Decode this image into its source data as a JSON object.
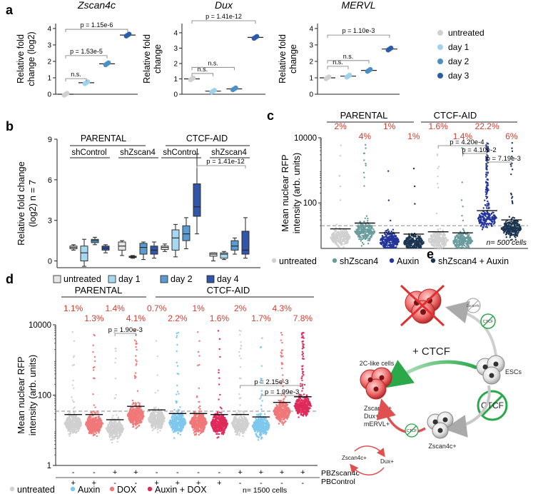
{
  "panels": {
    "a": "a",
    "b": "b",
    "c": "c",
    "d": "d",
    "e": "e"
  },
  "colors": {
    "untreated": "#d0d0d0",
    "day1": "#9fd3ec",
    "day2": "#4a8fc8",
    "day3": "#2c5ba8",
    "boxUntreated": "#e6e6e6",
    "boxDay1": "#a6d9f1",
    "boxDay2": "#5b9bd0",
    "boxDay4": "#3355a8",
    "shZscan4": "#6a9c9e",
    "auxin": "#23349a",
    "shAuxin": "#1c3551",
    "auxinLight": "#7ec8ee",
    "dox": "#f07878",
    "auxinDox": "#df2a5c",
    "pct": "#d63a2e",
    "green": "#2aa84a",
    "redX": "#e03030"
  },
  "chart_data": [
    {
      "type": "scatter",
      "panel": "a",
      "title": "Zscan4c",
      "ylabel": "Relative fold change (log2)",
      "ylim": [
        0,
        4.3
      ],
      "yticks": [
        "0",
        "1",
        "2",
        "3",
        "4"
      ],
      "series": [
        {
          "name": "untreated",
          "values": [
            0
          ]
        },
        {
          "name": "day 1",
          "values": [
            0.7
          ]
        },
        {
          "name": "day 2",
          "values": [
            1.85
          ]
        },
        {
          "name": "day 3",
          "values": [
            3.6
          ]
        }
      ],
      "annotations": [
        "n.s.",
        "p = 1.53e-5",
        "p = 1.15e-6"
      ]
    },
    {
      "type": "scatter",
      "panel": "a",
      "title": "Dux",
      "ylabel": "Relative fold change",
      "ylim": [
        0,
        4.6
      ],
      "yticks": [
        "0",
        "1",
        "2",
        "3",
        "4"
      ],
      "series": [
        {
          "name": "untreated",
          "values": [
            1.0
          ]
        },
        {
          "name": "day 1",
          "values": [
            0.2
          ]
        },
        {
          "name": "day 2",
          "values": [
            0.35
          ]
        },
        {
          "name": "day 3",
          "values": [
            3.7
          ]
        }
      ],
      "annotations": [
        "n.s.",
        "n.s.",
        "p = 1.41e-12"
      ]
    },
    {
      "type": "scatter",
      "panel": "a",
      "title": "MERVL",
      "ylabel": "Relative fold change",
      "ylim": [
        0,
        4.3
      ],
      "yticks": [
        "0",
        "1",
        "2",
        "3",
        "4"
      ],
      "series": [
        {
          "name": "untreated",
          "values": [
            1.0
          ]
        },
        {
          "name": "day 1",
          "values": [
            1.1
          ]
        },
        {
          "name": "day 2",
          "values": [
            1.45
          ]
        },
        {
          "name": "day 3",
          "values": [
            2.75
          ]
        }
      ],
      "annotations": [
        "n.s.",
        "n.s.",
        "p = 1.10e-3"
      ]
    },
    {
      "type": "box",
      "panel": "b",
      "ylabel": "Relative fold change (log2) n = 7",
      "ylim": [
        -0.5,
        9
      ],
      "yticks": [
        "0",
        "3",
        "6",
        "9"
      ],
      "groups": [
        "PARENTAL",
        "CTCF-AID"
      ],
      "subgroups": [
        "shControl",
        "shZscan4",
        "shControl",
        "shZscan4"
      ],
      "legend": [
        "untreated",
        "day 1",
        "day 2",
        "day 4"
      ],
      "annotation": "p = 1.41e-12",
      "boxes": [
        {
          "group": 0,
          "cond": 0,
          "min": 0.8,
          "q1": 0.9,
          "med": 1.0,
          "q3": 1.1,
          "max": 1.2
        },
        {
          "group": 0,
          "cond": 1,
          "min": -0.4,
          "q1": 0.0,
          "med": 0.6,
          "q3": 1.1,
          "max": 1.6
        },
        {
          "group": 0,
          "cond": 2,
          "min": 1.2,
          "q1": 1.35,
          "med": 1.5,
          "q3": 1.6,
          "max": 1.75
        },
        {
          "group": 0,
          "cond": 3,
          "min": 0.6,
          "q1": 0.8,
          "med": 0.95,
          "q3": 1.1,
          "max": 1.2
        },
        {
          "group": 1,
          "cond": 0,
          "min": 0.4,
          "q1": 0.8,
          "med": 1.1,
          "q3": 1.4,
          "max": 1.5
        },
        {
          "group": 1,
          "cond": 1,
          "min": 0.2,
          "q1": 0.25,
          "med": 0.3,
          "q3": 0.35,
          "max": 0.4
        },
        {
          "group": 1,
          "cond": 2,
          "min": 0.1,
          "q1": 0.5,
          "med": 1.0,
          "q3": 1.3,
          "max": 1.4
        },
        {
          "group": 1,
          "cond": 3,
          "min": 0.2,
          "q1": 0.5,
          "med": 0.8,
          "q3": 1.1,
          "max": 1.4
        },
        {
          "group": 2,
          "cond": 0,
          "min": 0.7,
          "q1": 0.85,
          "med": 1.0,
          "q3": 1.1,
          "max": 1.25
        },
        {
          "group": 2,
          "cond": 1,
          "min": 0.3,
          "q1": 0.8,
          "med": 1.7,
          "q3": 2.3,
          "max": 2.7
        },
        {
          "group": 2,
          "cond": 2,
          "min": 0.9,
          "q1": 1.5,
          "med": 2.0,
          "q3": 2.6,
          "max": 3.2
        },
        {
          "group": 2,
          "cond": 3,
          "min": 2.0,
          "q1": 3.3,
          "med": 4.0,
          "q3": 5.7,
          "max": 7.9
        },
        {
          "group": 3,
          "cond": 0,
          "min": 0.0,
          "q1": 0.35,
          "med": 0.5,
          "q3": 0.6,
          "max": 0.6
        },
        {
          "group": 3,
          "cond": 1,
          "min": 0.1,
          "q1": 0.2,
          "med": 0.5,
          "q3": 0.6,
          "max": 0.7
        },
        {
          "group": 3,
          "cond": 2,
          "min": 0.5,
          "q1": 0.8,
          "med": 1.1,
          "q3": 1.5,
          "max": 1.7
        },
        {
          "group": 3,
          "cond": 3,
          "min": 0.2,
          "q1": 0.5,
          "med": 0.8,
          "q3": 2.2,
          "max": 3.2
        }
      ]
    },
    {
      "type": "scatter",
      "panel": "c",
      "ylabel": "Mean nuclear RFP intensity (arb. units)",
      "yscale": "log",
      "ylim": [
        4,
        10000
      ],
      "yticks": [
        "10000",
        "100"
      ],
      "threshold": 20,
      "groups": [
        "PARENTAL",
        "CTCF-AID"
      ],
      "percents": [
        "2%",
        "4%",
        "1%",
        "1%",
        "1.6%",
        "1.4%",
        "22.2%",
        "6%"
      ],
      "means": [
        16,
        24,
        12,
        11,
        13,
        12,
        58,
        30
      ],
      "legend": [
        "untreated",
        "shZscan4",
        "Auxin",
        "shZscan4 + Auxin"
      ],
      "note": "n= 500 cells",
      "annotations": [
        "p = 4.20e-4",
        "p = 4.10e-2",
        "p = 7.19e-3"
      ]
    },
    {
      "type": "scatter",
      "panel": "d",
      "ylabel": "Mean nuclear RFP intensity (arb. units)",
      "yscale": "log",
      "ylim": [
        1,
        10000
      ],
      "yticks": [
        "10000",
        "100",
        "1"
      ],
      "threshold": 35,
      "groups": [
        "PARENTAL",
        "CTCF-AID"
      ],
      "percents": [
        "1.1%",
        "1.3%",
        "1.4%",
        "4.1%",
        "0.7%",
        "2.2%",
        "1%",
        "1.6%",
        "2%",
        "1.7%",
        "4.3%",
        "7.8%"
      ],
      "means": [
        28,
        28,
        20,
        48,
        38,
        30,
        30,
        28,
        28,
        24,
        62,
        90
      ],
      "row1_label": "PBZscan4c",
      "row2_label": "PBControl",
      "row1": [
        "-",
        "-",
        "+",
        "+",
        "-",
        "-",
        "-",
        "-",
        "+",
        "+",
        "+",
        "+"
      ],
      "row2": [
        "+",
        "+",
        "-",
        "-",
        "+",
        "+",
        "+",
        "+",
        "-",
        "-",
        "-",
        "-"
      ],
      "legend": [
        "untreated",
        "Auxin",
        "DOX",
        "Auxin + DOX"
      ],
      "note": "n= 1500 cells",
      "annotations": [
        "p = 1.90e-3",
        "p = 2.15e-3",
        "p = 1.99e-3"
      ]
    }
  ],
  "legend_a": [
    "untreated",
    "day 1",
    "day 2",
    "day 3"
  ],
  "diagram": {
    "ctcf_big": "+ CTCF",
    "twoC_label": "2C-like cells",
    "escs_label": "ESCs",
    "markers": [
      "Zscan4c+",
      "Dux+",
      "mERVL+"
    ],
    "zscan_pos": "Zscan4c+",
    "ctcf_small": "CTCF",
    "ctcf_circle_top": "CTCF",
    "zscan_small": "Zscan4c",
    "ctcf_big_circle": "CTCF",
    "loop_left": "Zscan4c+",
    "loop_right": "Dux+"
  }
}
